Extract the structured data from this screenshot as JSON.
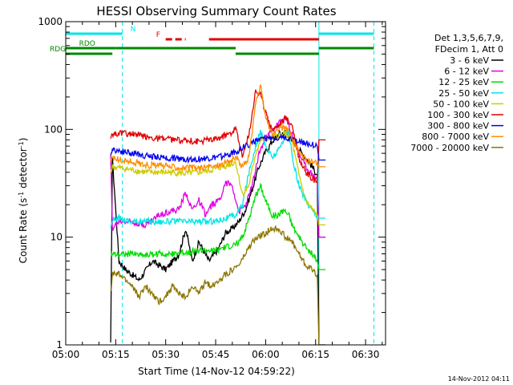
{
  "chart_data": {
    "type": "line",
    "title": "HESSI Observing Summary Count Rates",
    "xlabel": "Start Time (14-Nov-12 04:59:22)",
    "ylabel_main": "Count Rate (s",
    "ylabel_sup1": "-1",
    "ylabel_mid": " detector",
    "ylabel_sup2": "-1",
    "ylabel_end": ")",
    "yscale": "log",
    "xlim": [
      0,
      96
    ],
    "ylim": [
      1,
      1000
    ],
    "x_units": "minutes after 05:00",
    "x_ticks": [
      {
        "value": 0,
        "label": "05:00"
      },
      {
        "value": 15,
        "label": "05:15"
      },
      {
        "value": 30,
        "label": "05:30"
      },
      {
        "value": 45,
        "label": "05:45"
      },
      {
        "value": 60,
        "label": "06:00"
      },
      {
        "value": 75,
        "label": "06:15"
      },
      {
        "value": 90,
        "label": "06:30"
      }
    ],
    "y_ticks": [
      {
        "value": 1,
        "label": "1"
      },
      {
        "value": 10,
        "label": "10"
      },
      {
        "value": 100,
        "label": "100"
      },
      {
        "value": 1000,
        "label": "1000"
      }
    ],
    "vertical_lines": [
      {
        "value": 0,
        "style": "solid",
        "color": "#00e5e5"
      },
      {
        "value": 17,
        "style": "dashed",
        "color": "#00e5e5"
      },
      {
        "value": 76,
        "style": "solid",
        "color": "#00e5e5"
      },
      {
        "value": 92.5,
        "style": "dashed",
        "color": "#00e5e5"
      }
    ],
    "flag_bars": [
      {
        "label": "N",
        "color": "#00e5e5",
        "level": 1,
        "segments": [
          [
            0,
            17
          ],
          [
            76,
            92.5
          ]
        ],
        "dashed": false
      },
      {
        "label": "F",
        "color": "#e00000",
        "level": 2,
        "segments": [
          [
            30,
            36
          ]
        ],
        "dashed": true
      },
      {
        "label": "",
        "color": "#e00000",
        "level": 2,
        "segments": [
          [
            43,
            76
          ]
        ],
        "dashed": false
      },
      {
        "label": "RDO",
        "color": "#008800",
        "level": 3,
        "segments": [
          [
            0,
            15
          ]
        ],
        "dashed": false
      },
      {
        "label": "",
        "color": "#008800",
        "level": 3,
        "segments": [
          [
            15,
            51
          ]
        ],
        "dashed": false
      },
      {
        "label": "RDG",
        "color": "#008800",
        "level": 4,
        "segments": [
          [
            0,
            14
          ]
        ],
        "dashed": false
      },
      {
        "label": "",
        "color": "#008800",
        "level": 4,
        "segments": [
          [
            51,
            76
          ]
        ],
        "dashed": false
      },
      {
        "label": "",
        "color": "#008800",
        "level": 3,
        "segments": [
          [
            76,
            92.5
          ]
        ],
        "dashed": false
      }
    ],
    "legend_header": [
      "Det 1,3,5,6,7,9,",
      "FDecim 1, Att 0"
    ],
    "legend_position": "top-right",
    "series": [
      {
        "name": "3 - 6 keV",
        "color": "#000000",
        "points": [
          [
            13.5,
            1
          ],
          [
            14,
            55
          ],
          [
            16,
            6
          ],
          [
            18,
            5
          ],
          [
            22,
            4
          ],
          [
            26,
            6
          ],
          [
            30,
            5
          ],
          [
            34,
            7
          ],
          [
            36,
            12
          ],
          [
            38,
            6
          ],
          [
            40,
            9
          ],
          [
            43,
            6
          ],
          [
            46,
            8
          ],
          [
            48,
            11
          ],
          [
            50,
            12
          ],
          [
            52,
            14
          ],
          [
            54,
            18
          ],
          [
            56,
            28
          ],
          [
            58,
            45
          ],
          [
            60,
            62
          ],
          [
            62,
            78
          ],
          [
            64,
            90
          ],
          [
            66,
            95
          ],
          [
            68,
            80
          ],
          [
            70,
            65
          ],
          [
            72,
            55
          ],
          [
            74,
            45
          ],
          [
            75.5,
            38
          ],
          [
            76,
            1
          ],
          [
            78,
            1
          ]
        ]
      },
      {
        "name": "6 - 12 keV",
        "color": "#e000e0",
        "points": [
          [
            13.5,
            55
          ],
          [
            14,
            12
          ],
          [
            16,
            14
          ],
          [
            20,
            14
          ],
          [
            24,
            13
          ],
          [
            28,
            16
          ],
          [
            30,
            17
          ],
          [
            34,
            18
          ],
          [
            36,
            26
          ],
          [
            38,
            18
          ],
          [
            40,
            22
          ],
          [
            42,
            16
          ],
          [
            44,
            20
          ],
          [
            46,
            22
          ],
          [
            48,
            32
          ],
          [
            50,
            30
          ],
          [
            52,
            17
          ],
          [
            54,
            20
          ],
          [
            56,
            30
          ],
          [
            58,
            60
          ],
          [
            60,
            82
          ],
          [
            62,
            98
          ],
          [
            64,
            115
          ],
          [
            66,
            125
          ],
          [
            68,
            90
          ],
          [
            70,
            60
          ],
          [
            72,
            45
          ],
          [
            74,
            38
          ],
          [
            75.5,
            35
          ],
          [
            76,
            10
          ],
          [
            78,
            10
          ]
        ]
      },
      {
        "name": "12 - 25 keV",
        "color": "#00dd00",
        "points": [
          [
            13.5,
            7
          ],
          [
            14,
            7
          ],
          [
            16,
            7
          ],
          [
            20,
            7
          ],
          [
            24,
            6.8
          ],
          [
            28,
            7
          ],
          [
            32,
            7
          ],
          [
            36,
            7.2
          ],
          [
            40,
            7.5
          ],
          [
            44,
            7.5
          ],
          [
            48,
            8
          ],
          [
            51,
            8.5
          ],
          [
            53,
            10
          ],
          [
            55,
            15
          ],
          [
            57,
            24
          ],
          [
            58.5,
            30
          ],
          [
            60,
            22
          ],
          [
            62,
            16
          ],
          [
            64,
            16
          ],
          [
            65.5,
            18
          ],
          [
            67,
            16
          ],
          [
            68,
            13
          ],
          [
            70,
            10
          ],
          [
            72,
            8
          ],
          [
            74,
            7
          ],
          [
            75.5,
            6
          ],
          [
            76,
            5
          ],
          [
            78,
            5
          ]
        ]
      },
      {
        "name": "25 - 50 keV",
        "color": "#00e5e5",
        "points": [
          [
            13.5,
            12
          ],
          [
            14,
            14
          ],
          [
            16,
            15
          ],
          [
            20,
            14
          ],
          [
            24,
            14
          ],
          [
            28,
            14
          ],
          [
            32,
            14
          ],
          [
            36,
            14
          ],
          [
            40,
            14
          ],
          [
            44,
            14
          ],
          [
            48,
            15
          ],
          [
            51,
            16
          ],
          [
            53,
            20
          ],
          [
            55,
            40
          ],
          [
            57,
            70
          ],
          [
            58.5,
            95
          ],
          [
            60,
            70
          ],
          [
            62,
            55
          ],
          [
            64,
            65
          ],
          [
            66,
            90
          ],
          [
            67,
            95
          ],
          [
            68,
            55
          ],
          [
            70,
            30
          ],
          [
            72,
            22
          ],
          [
            74,
            18
          ],
          [
            75.5,
            16
          ],
          [
            76,
            15
          ],
          [
            78,
            15
          ]
        ]
      },
      {
        "name": "50 - 100 keV",
        "color": "#cccc00",
        "points": [
          [
            13.5,
            40
          ],
          [
            14,
            45
          ],
          [
            16,
            44
          ],
          [
            20,
            42
          ],
          [
            24,
            40
          ],
          [
            28,
            40
          ],
          [
            32,
            40
          ],
          [
            36,
            39
          ],
          [
            40,
            40
          ],
          [
            44,
            42
          ],
          [
            48,
            46
          ],
          [
            50,
            48
          ],
          [
            51,
            50
          ],
          [
            53,
            25
          ],
          [
            55,
            30
          ],
          [
            57,
            60
          ],
          [
            58.5,
            80
          ],
          [
            60,
            82
          ],
          [
            62,
            84
          ],
          [
            64,
            88
          ],
          [
            66,
            92
          ],
          [
            68,
            75
          ],
          [
            70,
            38
          ],
          [
            72,
            22
          ],
          [
            74,
            18
          ],
          [
            75.5,
            16
          ],
          [
            76,
            13
          ],
          [
            78,
            13
          ]
        ]
      },
      {
        "name": "100 - 300 keV",
        "color": "#e00000",
        "points": [
          [
            13.5,
            85
          ],
          [
            14,
            90
          ],
          [
            16,
            92
          ],
          [
            20,
            90
          ],
          [
            24,
            85
          ],
          [
            28,
            82
          ],
          [
            32,
            80
          ],
          [
            36,
            78
          ],
          [
            40,
            78
          ],
          [
            44,
            80
          ],
          [
            48,
            88
          ],
          [
            50,
            95
          ],
          [
            51,
            105
          ],
          [
            53,
            55
          ],
          [
            55,
            90
          ],
          [
            57,
            230
          ],
          [
            58.5,
            210
          ],
          [
            60,
            140
          ],
          [
            62,
            100
          ],
          [
            64,
            110
          ],
          [
            66,
            130
          ],
          [
            68,
            110
          ],
          [
            70,
            55
          ],
          [
            72,
            40
          ],
          [
            74,
            35
          ],
          [
            75.5,
            32
          ],
          [
            76,
            80
          ],
          [
            78,
            80
          ]
        ]
      },
      {
        "name": "300 - 800 keV",
        "color": "#0000ee",
        "points": [
          [
            13.5,
            60
          ],
          [
            14,
            65
          ],
          [
            16,
            63
          ],
          [
            20,
            60
          ],
          [
            24,
            57
          ],
          [
            28,
            55
          ],
          [
            32,
            54
          ],
          [
            36,
            53
          ],
          [
            40,
            53
          ],
          [
            44,
            54
          ],
          [
            48,
            57
          ],
          [
            51,
            62
          ],
          [
            54,
            70
          ],
          [
            57,
            78
          ],
          [
            60,
            82
          ],
          [
            63,
            85
          ],
          [
            66,
            84
          ],
          [
            69,
            80
          ],
          [
            72,
            75
          ],
          [
            75.5,
            70
          ],
          [
            76,
            52
          ],
          [
            78,
            52
          ]
        ]
      },
      {
        "name": "800 - 7000 keV",
        "color": "#ff8c00",
        "points": [
          [
            13.5,
            50
          ],
          [
            14,
            55
          ],
          [
            16,
            52
          ],
          [
            20,
            50
          ],
          [
            24,
            47
          ],
          [
            28,
            46
          ],
          [
            32,
            45
          ],
          [
            36,
            44
          ],
          [
            40,
            44
          ],
          [
            44,
            45
          ],
          [
            48,
            49
          ],
          [
            50,
            52
          ],
          [
            51,
            55
          ],
          [
            53,
            45
          ],
          [
            55,
            55
          ],
          [
            57,
            180
          ],
          [
            58.5,
            245
          ],
          [
            60,
            130
          ],
          [
            62,
            90
          ],
          [
            64,
            100
          ],
          [
            66,
            105
          ],
          [
            68,
            85
          ],
          [
            70,
            60
          ],
          [
            72,
            52
          ],
          [
            74,
            50
          ],
          [
            75.5,
            48
          ],
          [
            76,
            45
          ],
          [
            78,
            45
          ]
        ]
      },
      {
        "name": "7000 - 20000 keV",
        "color": "#8b7500",
        "points": [
          [
            13.5,
            3
          ],
          [
            14,
            4.5
          ],
          [
            16,
            4.5
          ],
          [
            18,
            4
          ],
          [
            20,
            3.5
          ],
          [
            22,
            2.8
          ],
          [
            24,
            3.5
          ],
          [
            26,
            3
          ],
          [
            28,
            2.5
          ],
          [
            30,
            2.8
          ],
          [
            32,
            3.5
          ],
          [
            34,
            3
          ],
          [
            36,
            2.8
          ],
          [
            38,
            3.5
          ],
          [
            40,
            3
          ],
          [
            42,
            3.8
          ],
          [
            44,
            3.5
          ],
          [
            46,
            4
          ],
          [
            48,
            4.5
          ],
          [
            50,
            5
          ],
          [
            52,
            5.5
          ],
          [
            54,
            7
          ],
          [
            56,
            9
          ],
          [
            58,
            10
          ],
          [
            60,
            11
          ],
          [
            62,
            12
          ],
          [
            64,
            12
          ],
          [
            66,
            10
          ],
          [
            68,
            9
          ],
          [
            70,
            7
          ],
          [
            72,
            5.5
          ],
          [
            74,
            5
          ],
          [
            75.5,
            4.5
          ],
          [
            76,
            1
          ],
          [
            78,
            1
          ]
        ]
      }
    ]
  },
  "footer": {
    "timestamp": "14-Nov-2012 04:11"
  }
}
